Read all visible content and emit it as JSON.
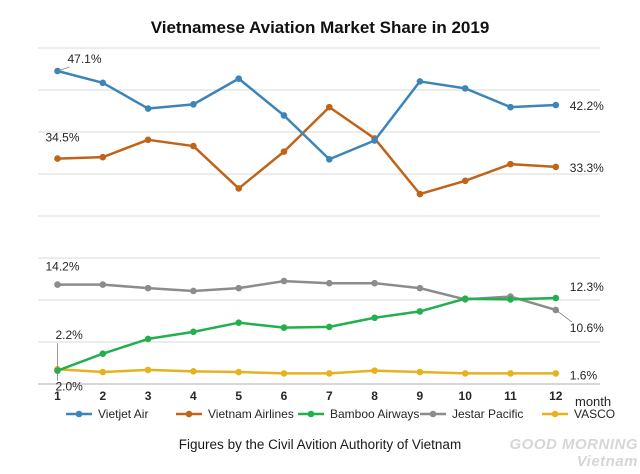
{
  "chart_data": {
    "type": "line",
    "title": "Vietnamese Aviation Market Share in 2019",
    "caption": "Figures by the Civil Avition Authority of Vietnam",
    "xlabel": "month",
    "ylabel": "",
    "x": [
      1,
      2,
      3,
      4,
      5,
      6,
      7,
      8,
      9,
      10,
      11,
      12
    ],
    "grid": true,
    "legend_position": "bottom",
    "series": [
      {
        "name": "Vietjet Air",
        "color": "#3d85b8",
        "values": [
          47.1,
          45.4,
          41.7,
          42.3,
          46.0,
          40.7,
          34.4,
          37.1,
          45.6,
          44.6,
          41.9,
          42.2
        ]
      },
      {
        "name": "Vietnam Airlines",
        "color": "#c0641a",
        "values": [
          34.5,
          34.7,
          37.2,
          36.3,
          30.2,
          35.5,
          41.9,
          37.4,
          29.4,
          31.3,
          33.7,
          33.3
        ]
      },
      {
        "name": "Bamboo Airways",
        "color": "#22b04e",
        "values": [
          2.0,
          4.4,
          6.5,
          7.5,
          8.8,
          8.1,
          8.2,
          9.5,
          10.4,
          12.2,
          12.1,
          12.3
        ]
      },
      {
        "name": "Jestar Pacific",
        "color": "#8c8c8c",
        "values": [
          14.2,
          14.2,
          13.7,
          13.3,
          13.7,
          14.7,
          14.4,
          14.4,
          13.7,
          12.1,
          12.5,
          10.6
        ]
      },
      {
        "name": "VASCO",
        "color": "#e6b31e",
        "values": [
          2.2,
          1.8,
          2.1,
          1.9,
          1.8,
          1.6,
          1.6,
          2.0,
          1.8,
          1.6,
          1.6,
          1.6
        ]
      }
    ],
    "annotations": [
      {
        "series": "Vietjet Air",
        "x": 1,
        "text": "47.1%"
      },
      {
        "series": "Vietjet Air",
        "x": 12,
        "text": "42.2%"
      },
      {
        "series": "Vietnam Airlines",
        "x": 1,
        "text": "34.5%"
      },
      {
        "series": "Vietnam Airlines",
        "x": 12,
        "text": "33.3%"
      },
      {
        "series": "Jestar Pacific",
        "x": 1,
        "text": "14.2%"
      },
      {
        "series": "Bamboo Airways",
        "x": 12,
        "text": "12.3%"
      },
      {
        "series": "Jestar Pacific",
        "x": 12,
        "text": "10.6%"
      },
      {
        "series": "VASCO",
        "x": 1,
        "text": "2.2%"
      },
      {
        "series": "Bamboo Airways",
        "x": 1,
        "text": "2.0%"
      },
      {
        "series": "VASCO",
        "x": 12,
        "text": "1.6%"
      }
    ]
  },
  "watermark": "GOOD MORNING Vietnam"
}
